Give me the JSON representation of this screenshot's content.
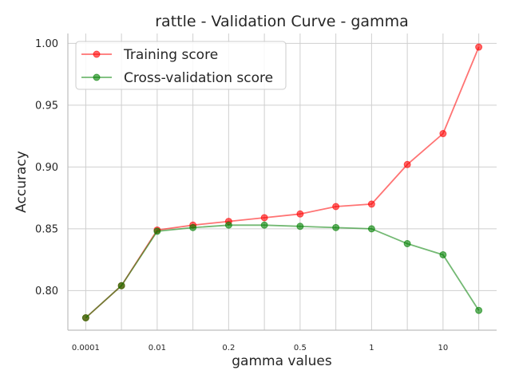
{
  "chart_data": {
    "type": "line",
    "title": "rattle - Validation Curve - gamma",
    "xlabel": "gamma values",
    "ylabel": "Accuracy",
    "x": [
      0,
      1,
      2,
      3,
      4,
      5,
      6,
      7,
      8,
      9,
      10,
      11
    ],
    "xtick_labels": [
      {
        "x": 0,
        "label": "0.0001"
      },
      {
        "x": 2,
        "label": "0.01"
      },
      {
        "x": 4,
        "label": "0.2"
      },
      {
        "x": 6,
        "label": "0.5"
      },
      {
        "x": 8,
        "label": "1"
      },
      {
        "x": 10,
        "label": "10"
      }
    ],
    "xlim": [
      -0.5,
      11.5
    ],
    "ylim": [
      0.768,
      1.008
    ],
    "yticks": [
      0.8,
      0.85,
      0.9,
      0.95,
      1.0
    ],
    "ytick_labels": [
      "0.80",
      "0.85",
      "0.90",
      "0.95",
      "1.00"
    ],
    "grid": true,
    "legend_position": "top-left",
    "series": [
      {
        "name": "Training score",
        "color": "#ff0000",
        "values": [
          0.778,
          0.804,
          0.849,
          0.853,
          0.856,
          0.859,
          0.862,
          0.868,
          0.87,
          0.902,
          0.927,
          0.997
        ]
      },
      {
        "name": "Cross-validation score",
        "color": "#008000",
        "values": [
          0.778,
          0.804,
          0.848,
          0.851,
          0.853,
          0.853,
          0.852,
          0.851,
          0.85,
          0.838,
          0.829,
          0.784
        ]
      }
    ]
  }
}
